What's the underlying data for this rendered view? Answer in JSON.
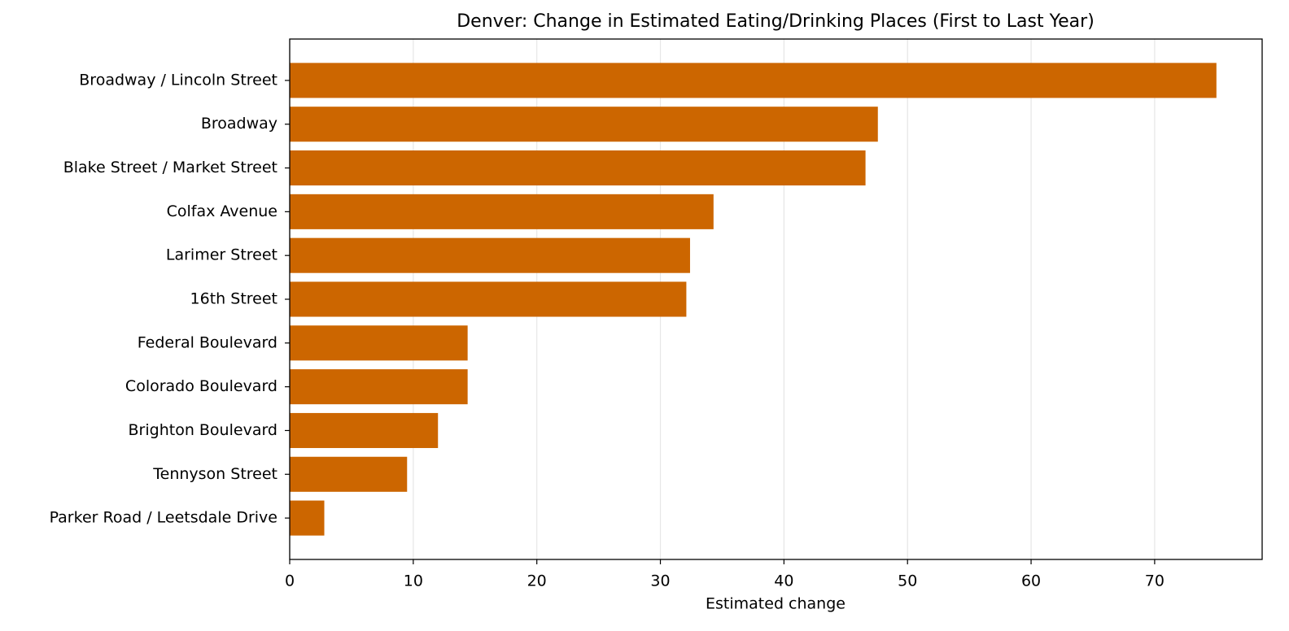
{
  "chart_data": {
    "type": "barh",
    "title": "Denver: Change in Estimated Eating/Drinking Places (First to Last Year)",
    "x_label": "Estimated change",
    "categories": [
      "Broadway / Lincoln Street",
      "Broadway",
      "Blake Street / Market Street",
      "Colfax Avenue",
      "Larimer Street",
      "16th Street",
      "Federal Boulevard",
      "Colorado Boulevard",
      "Brighton Boulevard",
      "Tennyson Street",
      "Parker Road / Leetsdale Drive"
    ],
    "values": [
      75.0,
      47.6,
      46.6,
      34.3,
      32.4,
      32.1,
      14.4,
      14.4,
      12.0,
      9.5,
      2.8
    ],
    "color": "#cc6600",
    "xlim": [
      0,
      78.7
    ],
    "xticks": [
      0,
      10,
      20,
      30,
      40,
      50,
      60,
      70
    ],
    "grid": true
  }
}
